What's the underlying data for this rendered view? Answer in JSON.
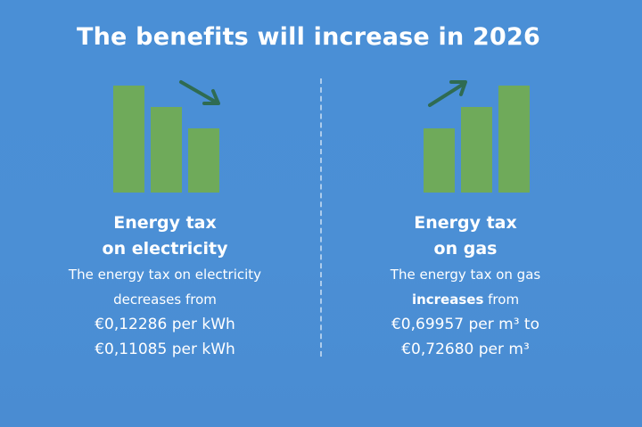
{
  "title": "The benefits will increase in 2026",
  "colors": {
    "background": "#4a8fd6",
    "bar": "#6faa5a",
    "arrow": "#2f6b52",
    "text": "#ffffff"
  },
  "left": {
    "icon": "decreasing-bars-icon",
    "bar_levels": [
      1.0,
      0.78,
      0.6
    ],
    "arrow_direction": "down-right",
    "heading_line1": "Energy tax",
    "heading_line2": "on electricity",
    "desc_line1": "The energy tax on electricity",
    "desc_line2": "decreases from",
    "desc_line3": "€0,12286 per kWh",
    "desc_line4": "€0,11085 per kWh"
  },
  "right": {
    "icon": "increasing-bars-icon",
    "bar_levels": [
      0.6,
      0.78,
      1.0
    ],
    "arrow_direction": "up-right",
    "heading_line1": "Energy tax",
    "heading_line2": "on gas",
    "desc_line1": "The energy tax on gas",
    "desc_line2_bold": "increases",
    "desc_line2_rest": " from",
    "desc_line3": "€0,69957 per m³ to",
    "desc_line4": "€0,72680 per m³"
  }
}
